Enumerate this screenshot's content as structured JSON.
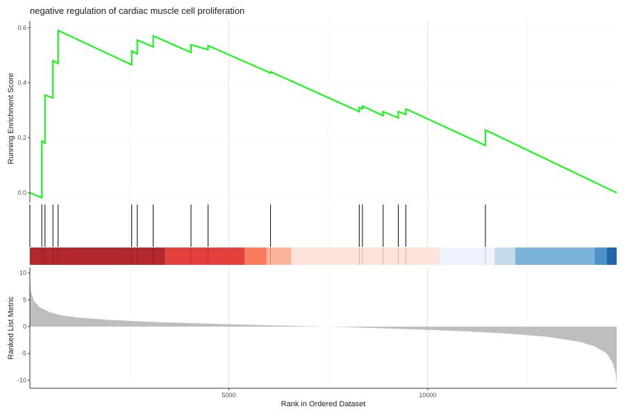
{
  "chart_data": {
    "type": "line",
    "title": "negative regulation of cardiac muscle cell proliferation",
    "xlabel": "Rank in Ordered Dataset",
    "xlim": [
      0,
      14750
    ],
    "x_ticks": [
      5000,
      10000
    ],
    "x_tick_labels": [
      "5000",
      "10000"
    ],
    "grid": true,
    "panels": {
      "running_score": {
        "ylabel": "Running Enrichment Score",
        "ylim": [
          -0.035,
          0.625
        ],
        "y_ticks": [
          0.0,
          0.2,
          0.4,
          0.6
        ],
        "y_tick_labels": [
          "0.0",
          "0.2",
          "0.4",
          "0.6"
        ],
        "line_color": "#00FF00",
        "points": [
          [
            0,
            0.0
          ],
          [
            300,
            -0.018
          ],
          [
            300,
            0.188
          ],
          [
            380,
            0.18
          ],
          [
            380,
            0.355
          ],
          [
            580,
            0.345
          ],
          [
            580,
            0.48
          ],
          [
            710,
            0.47
          ],
          [
            710,
            0.59
          ],
          [
            2560,
            0.465
          ],
          [
            2560,
            0.515
          ],
          [
            2700,
            0.505
          ],
          [
            2700,
            0.555
          ],
          [
            3100,
            0.53
          ],
          [
            3100,
            0.57
          ],
          [
            4050,
            0.51
          ],
          [
            4050,
            0.538
          ],
          [
            4480,
            0.52
          ],
          [
            4480,
            0.535
          ],
          [
            6050,
            0.435
          ],
          [
            6050,
            0.44
          ],
          [
            8280,
            0.295
          ],
          [
            8280,
            0.31
          ],
          [
            8360,
            0.305
          ],
          [
            8360,
            0.315
          ],
          [
            8880,
            0.28
          ],
          [
            8880,
            0.295
          ],
          [
            9260,
            0.272
          ],
          [
            9260,
            0.295
          ],
          [
            9450,
            0.285
          ],
          [
            9450,
            0.305
          ],
          [
            11450,
            0.172
          ],
          [
            11450,
            0.228
          ],
          [
            14750,
            0.0
          ]
        ]
      },
      "hits": {
        "positions": [
          0,
          300,
          380,
          580,
          710,
          2560,
          2700,
          3100,
          4050,
          4480,
          6050,
          8280,
          8360,
          8880,
          9260,
          9450,
          11450
        ]
      },
      "rank_colorbar": {
        "bands": [
          {
            "start": 0,
            "end": 3400,
            "color": "#B2282C"
          },
          {
            "start": 3400,
            "end": 5400,
            "color": "#E4403C"
          },
          {
            "start": 5400,
            "end": 5950,
            "color": "#FA7A5E"
          },
          {
            "start": 5950,
            "end": 6570,
            "color": "#FCB399"
          },
          {
            "start": 6570,
            "end": 10300,
            "color": "#FDE3D9"
          },
          {
            "start": 10300,
            "end": 11680,
            "color": "#EEF3FB"
          },
          {
            "start": 11680,
            "end": 12200,
            "color": "#C4DBEA"
          },
          {
            "start": 12200,
            "end": 14200,
            "color": "#7AB5D9"
          },
          {
            "start": 14200,
            "end": 14500,
            "color": "#4C92C8"
          },
          {
            "start": 14500,
            "end": 14750,
            "color": "#2165AB"
          }
        ]
      },
      "ranked_metric": {
        "ylabel": "Ranked List Metric",
        "ylim": [
          -11.5,
          11
        ],
        "y_ticks": [
          10,
          5,
          0,
          -5,
          -10
        ],
        "y_tick_labels": [
          "10",
          "5",
          "0",
          "-5",
          "-10"
        ],
        "fill_color": "#BEBEBE",
        "points": [
          [
            0,
            9.5
          ],
          [
            30,
            6.5
          ],
          [
            100,
            4.8
          ],
          [
            250,
            3.6
          ],
          [
            500,
            2.7
          ],
          [
            800,
            2.1
          ],
          [
            1200,
            1.7
          ],
          [
            2000,
            1.25
          ],
          [
            3000,
            0.9
          ],
          [
            4000,
            0.65
          ],
          [
            5000,
            0.45
          ],
          [
            6000,
            0.25
          ],
          [
            7000,
            0.08
          ],
          [
            7500,
            0.0
          ],
          [
            8000,
            -0.1
          ],
          [
            9000,
            -0.35
          ],
          [
            10000,
            -0.6
          ],
          [
            11000,
            -0.9
          ],
          [
            12000,
            -1.3
          ],
          [
            13000,
            -1.9
          ],
          [
            13800,
            -2.8
          ],
          [
            14200,
            -3.7
          ],
          [
            14500,
            -5.0
          ],
          [
            14650,
            -6.8
          ],
          [
            14720,
            -8.5
          ],
          [
            14750,
            -10.8
          ]
        ]
      }
    }
  }
}
